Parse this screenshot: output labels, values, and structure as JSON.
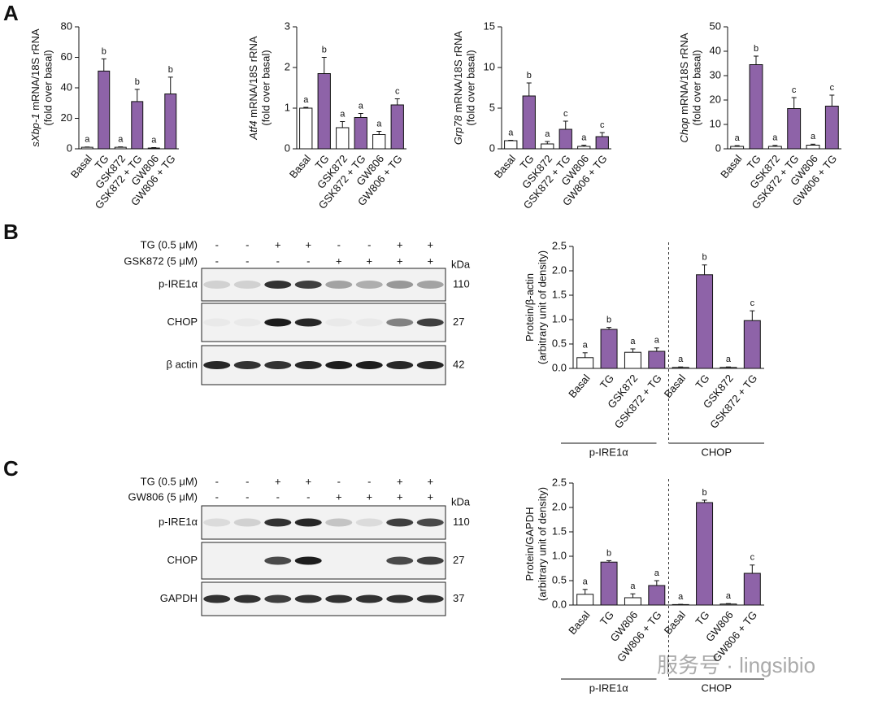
{
  "panels": [
    "A",
    "B",
    "C"
  ],
  "watermark": "服务号 · lingsibio",
  "chart_data": [
    {
      "type": "bar",
      "ylabel_gene": "sXbp-1",
      "ylabel_rest": " mRNA/18S rRNA",
      "ylabel_line2": "(fold over basal)",
      "categories": [
        "Basal",
        "TG",
        "GSK872",
        "GSK872 + TG",
        "GW806",
        "GW806 + TG"
      ],
      "values": [
        1,
        51,
        1,
        31,
        0.5,
        36
      ],
      "errors": [
        0.2,
        8,
        0.3,
        8,
        0.3,
        11
      ],
      "letters": [
        "a",
        "b",
        "a",
        "b",
        "a",
        "b"
      ],
      "colors": [
        "#ffffff",
        "#8e63a8",
        "#ffffff",
        "#8e63a8",
        "#ffffff",
        "#8e63a8"
      ],
      "ylim": [
        0,
        80
      ],
      "yticks": [
        0,
        20,
        40,
        60,
        80
      ]
    },
    {
      "type": "bar",
      "ylabel_gene": "Atf4",
      "ylabel_rest": " mRNA/18S rRNA",
      "ylabel_line2": "(fold over basal)",
      "categories": [
        "Basal",
        "TG",
        "GSK872",
        "GSK872 + TG",
        "GW806",
        "GW806 + TG"
      ],
      "values": [
        1.0,
        1.85,
        0.52,
        0.77,
        0.35,
        1.08
      ],
      "errors": [
        0.02,
        0.4,
        0.15,
        0.1,
        0.08,
        0.15
      ],
      "letters": [
        "a",
        "b",
        "a",
        "a",
        "a",
        "c"
      ],
      "colors": [
        "#ffffff",
        "#8e63a8",
        "#ffffff",
        "#8e63a8",
        "#ffffff",
        "#8e63a8"
      ],
      "ylim": [
        0,
        3
      ],
      "yticks": [
        0,
        1,
        2,
        3
      ]
    },
    {
      "type": "bar",
      "ylabel_gene": "Grp78",
      "ylabel_rest": " mRNA/18S rRNA",
      "ylabel_line2": "(fold over basal)",
      "categories": [
        "Basal",
        "TG",
        "GSK872",
        "GSK872 + TG",
        "GW806",
        "GW806 + TG"
      ],
      "values": [
        1.0,
        6.5,
        0.6,
        2.4,
        0.3,
        1.5
      ],
      "errors": [
        0.05,
        1.6,
        0.3,
        1.0,
        0.15,
        0.5
      ],
      "letters": [
        "a",
        "b",
        "a",
        "c",
        "a",
        "c"
      ],
      "colors": [
        "#ffffff",
        "#8e63a8",
        "#ffffff",
        "#8e63a8",
        "#ffffff",
        "#8e63a8"
      ],
      "ylim": [
        0,
        15
      ],
      "yticks": [
        0,
        5,
        10,
        15
      ]
    },
    {
      "type": "bar",
      "ylabel_gene": "Chop",
      "ylabel_rest": " mRNA/18S rRNA",
      "ylabel_line2": "(fold over basal)",
      "categories": [
        "Basal",
        "TG",
        "GSK872",
        "GSK872 + TG",
        "GW806",
        "GW806 + TG"
      ],
      "values": [
        1,
        34.5,
        1,
        16.5,
        1.5,
        17.5
      ],
      "errors": [
        0.3,
        3.5,
        0.4,
        4.5,
        0.4,
        4.5
      ],
      "letters": [
        "a",
        "b",
        "a",
        "c",
        "a",
        "c"
      ],
      "colors": [
        "#ffffff",
        "#8e63a8",
        "#ffffff",
        "#8e63a8",
        "#ffffff",
        "#8e63a8"
      ],
      "ylim": [
        0,
        50
      ],
      "yticks": [
        0,
        10,
        20,
        30,
        40,
        50
      ]
    },
    {
      "type": "bar",
      "ylabel_gene": "",
      "ylabel_rest": "Protein/β-actin",
      "ylabel_line2": "(arbitrary unit of density)",
      "categories": [
        "Basal",
        "TG",
        "GSK872",
        "GSK872 + TG",
        "Basal",
        "TG",
        "GSK872",
        "GSK872 + TG"
      ],
      "values": [
        0.22,
        0.8,
        0.33,
        0.35,
        0.02,
        1.92,
        0.02,
        0.98
      ],
      "errors": [
        0.1,
        0.04,
        0.07,
        0.07,
        0.01,
        0.2,
        0.01,
        0.2
      ],
      "letters": [
        "a",
        "b",
        "a",
        "a",
        "a",
        "b",
        "a",
        "c"
      ],
      "colors": [
        "#ffffff",
        "#8e63a8",
        "#ffffff",
        "#8e63a8",
        "#ffffff",
        "#8e63a8",
        "#ffffff",
        "#8e63a8"
      ],
      "groups": [
        "p-IRE1α",
        "CHOP"
      ],
      "ylim": [
        0,
        2.5
      ],
      "yticks": [
        {
          "value": 0,
          "label": "0.0"
        },
        0.5,
        {
          "value": 1,
          "label": "1.0"
        },
        1.5,
        {
          "value": 2,
          "label": "2.0"
        },
        2.5
      ]
    },
    {
      "type": "bar",
      "ylabel_gene": "",
      "ylabel_rest": "Protein/GAPDH",
      "ylabel_line2": "(arbitrary unit of density)",
      "categories": [
        "Basal",
        "TG",
        "GW806",
        "GW806 + TG",
        "Basal",
        "TG",
        "GW806",
        "GW806 + TG"
      ],
      "values": [
        0.22,
        0.88,
        0.15,
        0.4,
        0.01,
        2.1,
        0.02,
        0.65
      ],
      "errors": [
        0.1,
        0.03,
        0.08,
        0.1,
        0.005,
        0.05,
        0.01,
        0.17
      ],
      "letters": [
        "a",
        "b",
        "a",
        "a",
        "a",
        "b",
        "a",
        "c"
      ],
      "colors": [
        "#ffffff",
        "#8e63a8",
        "#ffffff",
        "#8e63a8",
        "#ffffff",
        "#8e63a8",
        "#ffffff",
        "#8e63a8"
      ],
      "groups": [
        "p-IRE1α",
        "CHOP"
      ],
      "ylim": [
        0,
        2.5
      ],
      "yticks": [
        {
          "value": 0,
          "label": "0.0"
        },
        0.5,
        {
          "value": 1,
          "label": "1.0"
        },
        1.5,
        {
          "value": 2,
          "label": "2.0"
        },
        2.5
      ]
    }
  ],
  "blots": [
    {
      "treatments": [
        {
          "label": "TG (0.5 μM)",
          "signs": [
            "-",
            "-",
            "+",
            "+",
            "-",
            "-",
            "+",
            "+"
          ]
        },
        {
          "label": "GSK872 (5 μM)",
          "signs": [
            "-",
            "-",
            "-",
            "-",
            "+",
            "+",
            "+",
            "+"
          ]
        }
      ],
      "unit": "kDa",
      "rows": [
        {
          "label": "p-IRE1α",
          "kda": 110
        },
        {
          "label": "CHOP",
          "kda": 27
        },
        {
          "label": "β actin",
          "kda": 42
        }
      ]
    },
    {
      "treatments": [
        {
          "label": "TG (0.5 μM)",
          "signs": [
            "-",
            "-",
            "+",
            "+",
            "-",
            "-",
            "+",
            "+"
          ]
        },
        {
          "label": "GW806 (5 μM)",
          "signs": [
            "-",
            "-",
            "-",
            "-",
            "+",
            "+",
            "+",
            "+"
          ]
        }
      ],
      "unit": "kDa",
      "rows": [
        {
          "label": "p-IRE1α",
          "kda": 110
        },
        {
          "label": "CHOP",
          "kda": 27
        },
        {
          "label": "GAPDH",
          "kda": 37
        }
      ]
    }
  ]
}
